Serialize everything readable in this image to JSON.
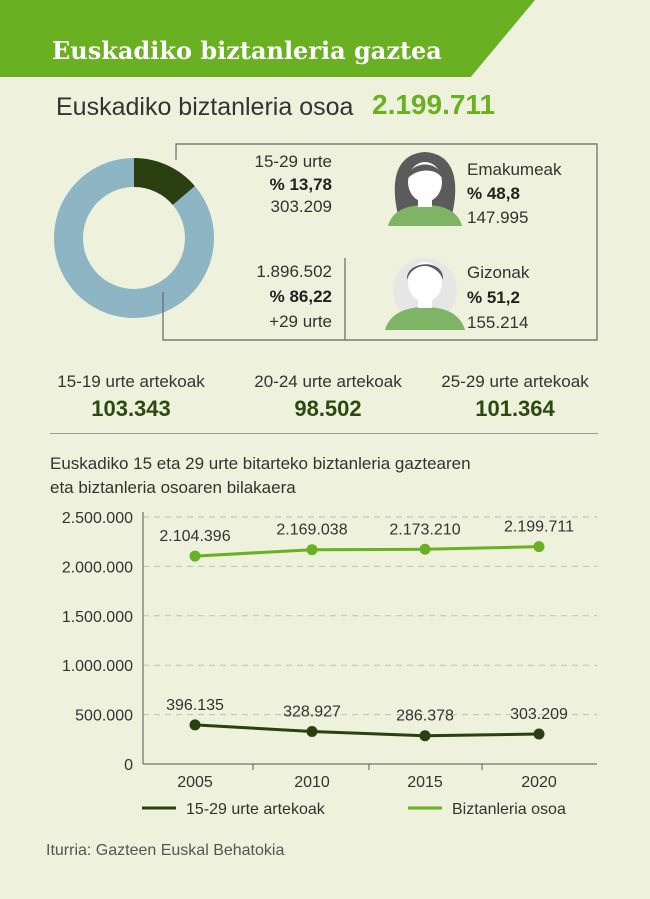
{
  "banner": {
    "title": "Euskadiko biztanleria gaztea"
  },
  "total": {
    "label": "Euskadiko biztanleria osoa",
    "value": "2.199.711"
  },
  "donut": {
    "young": {
      "label": "15-29 urte",
      "percent": "% 13,78",
      "count": "303.209",
      "fraction": 0.1378
    },
    "rest": {
      "count": "1.896.502",
      "percent": "% 86,22",
      "label": "+29 urte",
      "fraction": 0.8622
    }
  },
  "gender": {
    "women": {
      "label": "Emakumeak",
      "percent": "% 48,8",
      "count": "147.995"
    },
    "men": {
      "label": "Gizonak",
      "percent": "% 51,2",
      "count": "155.214"
    }
  },
  "age_groups": [
    {
      "label": "15-19 urte artekoak",
      "value": "103.343"
    },
    {
      "label": "20-24 urte artekoak",
      "value": "98.502"
    },
    {
      "label": "25-29 urte artekoak",
      "value": "101.364"
    }
  ],
  "colors": {
    "accent": "#6ab023",
    "dark_green": "#2a4010",
    "donut_rest": "#8db5c4",
    "background": "#eef1dc"
  },
  "source": "Iturria: Gazteen Euskal Behatokia",
  "chart_data": {
    "type": "line",
    "title_lines": [
      "Euskadiko 15 eta 29 urte bitarteko biztanleria gaztearen",
      "eta biztanleria osoaren bilakaera"
    ],
    "x": [
      "2005",
      "2010",
      "2015",
      "2020"
    ],
    "y_ticks": [
      "2.500.000",
      "2.000.000",
      "1.500.000",
      "1.000.000",
      "500.000",
      "0"
    ],
    "y_tick_values": [
      2500000,
      2000000,
      1500000,
      1000000,
      500000,
      0
    ],
    "ylim": [
      0,
      2500000
    ],
    "grid": true,
    "legend_position": "bottom",
    "series": [
      {
        "name": "15-29 urte artekoak",
        "color": "#2a4010",
        "values": [
          396135,
          328927,
          286378,
          303209
        ],
        "labels": [
          "396.135",
          "328.927",
          "286.378",
          "303.209"
        ]
      },
      {
        "name": "Biztanleria osoa",
        "color": "#6ab023",
        "values": [
          2104396,
          2169038,
          2173210,
          2199711
        ],
        "labels": [
          "2.104.396",
          "2.169.038",
          "2.173.210",
          "2.199.711"
        ]
      }
    ]
  }
}
